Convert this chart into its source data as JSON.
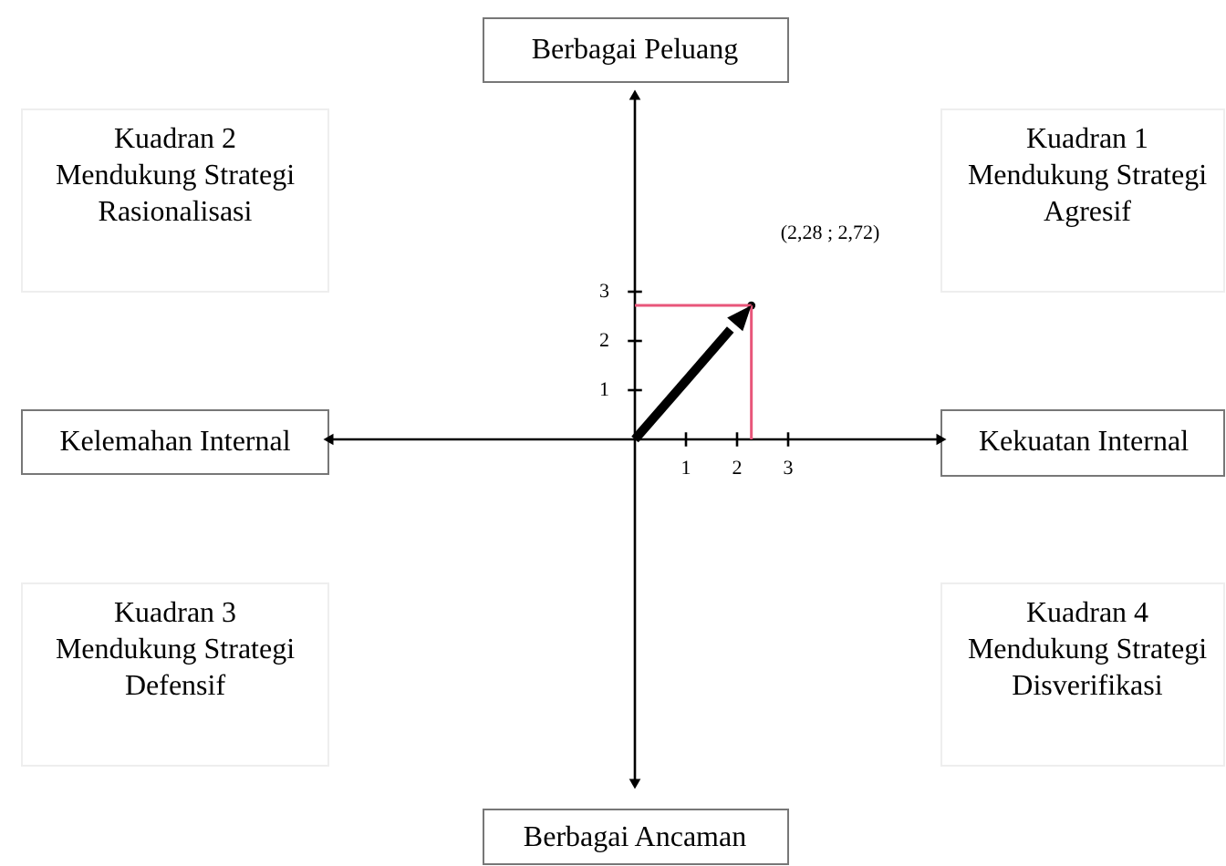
{
  "chart_data": {
    "type": "scatter",
    "x": [
      2.28
    ],
    "series": [
      {
        "color": "#000000",
        "values": [
          2.72
        ]
      }
    ],
    "xlim": [
      -6,
      6
    ],
    "ylim": [
      -7,
      7
    ],
    "xticks": [
      1,
      2,
      3
    ],
    "yticks": [
      1,
      2,
      3
    ],
    "ref_lines": [
      {
        "axis": "x",
        "value": 2.28,
        "color": "#e8567a"
      },
      {
        "axis": "y",
        "value": 2.72,
        "color": "#e8567a"
      }
    ],
    "annotations": [
      "Berbagai Peluang",
      "Berbagai Ancaman",
      "Kelemahan Internal",
      "Kekuatan Internal",
      "Kuadran 2\nMendukung Strategi\nRasionalisasi",
      "Kuadran 1\nMendukung Strategi\nAgresif",
      "Kuadran 3\nMendukung Strategi\nDefensif",
      "Kuadran 4\nMendukung Strategi\nDisverifikasi",
      "(2,28 ; 2,72)"
    ]
  }
}
